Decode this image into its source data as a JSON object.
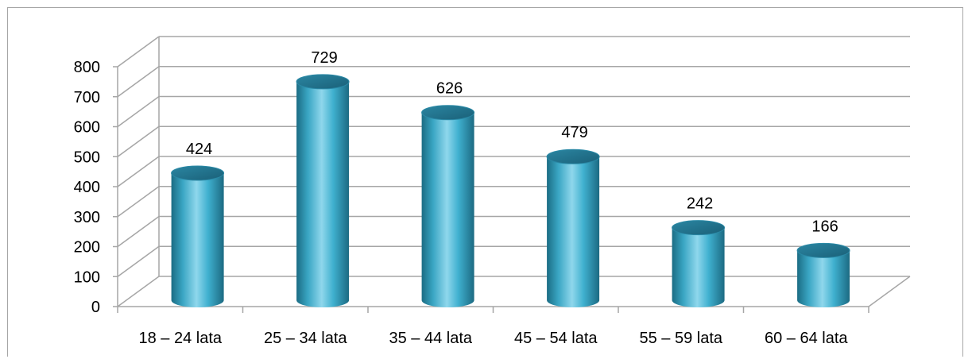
{
  "chart_data": {
    "type": "bar",
    "style": "3d-cylinder",
    "categories": [
      "18 – 24 lata",
      "25 – 34 lata",
      "35 – 44 lata",
      "45 – 54 lata",
      "55 – 59 lata",
      "60 – 64 lata"
    ],
    "series": [
      {
        "values": [
          424,
          729,
          626,
          479,
          242,
          166
        ]
      }
    ],
    "data_labels": [
      "424",
      "729",
      "626",
      "479",
      "242",
      "166"
    ],
    "y_ticks": [
      "0",
      "100",
      "200",
      "300",
      "400",
      "500",
      "600",
      "700",
      "800"
    ],
    "ylim": [
      0,
      800
    ],
    "grid": true,
    "legend": "none",
    "colors": {
      "bar": "#4bacc6",
      "bar_dark": "#1f6f86",
      "bar_light": "#9fe0f2",
      "grid": "#a6a6a6"
    }
  }
}
